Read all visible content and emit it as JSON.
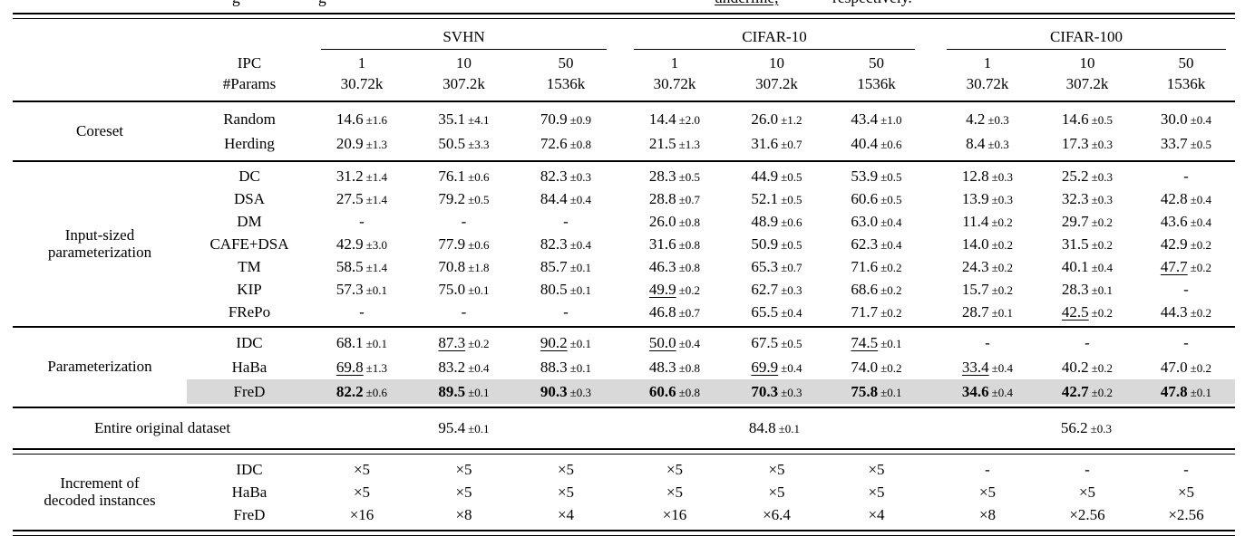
{
  "colors": {
    "row_highlight": "#d9d9d9",
    "text": "#000000",
    "background": "#ffffff"
  },
  "caption_fragments": [
    {
      "text": "g"
    },
    {
      "text": "g"
    },
    {
      "text": "underline,"
    },
    {
      "text": "respectively."
    }
  ],
  "table": {
    "header": {
      "ipc_label": "IPC",
      "params_label": "#Params",
      "groups": [
        {
          "name": "SVHN"
        },
        {
          "name": "CIFAR-10"
        },
        {
          "name": "CIFAR-100"
        }
      ],
      "ipc": [
        "1",
        "10",
        "50",
        "1",
        "10",
        "50",
        "1",
        "10",
        "50"
      ],
      "params": [
        "30.72k",
        "307.2k",
        "1536k",
        "30.72k",
        "307.2k",
        "1536k",
        "30.72k",
        "307.2k",
        "1536k"
      ]
    },
    "sections": [
      {
        "category_lines": [
          "Coreset"
        ],
        "rows": [
          {
            "method": "Random",
            "cells": [
              {
                "v": "14.6",
                "e": "±1.6"
              },
              {
                "v": "35.1",
                "e": "±4.1"
              },
              {
                "v": "70.9",
                "e": "±0.9"
              },
              {
                "v": "14.4",
                "e": "±2.0"
              },
              {
                "v": "26.0",
                "e": "±1.2"
              },
              {
                "v": "43.4",
                "e": "±1.0"
              },
              {
                "v": "4.2",
                "e": "±0.3"
              },
              {
                "v": "14.6",
                "e": "±0.5"
              },
              {
                "v": "30.0",
                "e": "±0.4"
              }
            ]
          },
          {
            "method": "Herding",
            "cells": [
              {
                "v": "20.9",
                "e": "±1.3"
              },
              {
                "v": "50.5",
                "e": "±3.3"
              },
              {
                "v": "72.6",
                "e": "±0.8"
              },
              {
                "v": "21.5",
                "e": "±1.3"
              },
              {
                "v": "31.6",
                "e": "±0.7"
              },
              {
                "v": "40.4",
                "e": "±0.6"
              },
              {
                "v": "8.4",
                "e": "±0.3"
              },
              {
                "v": "17.3",
                "e": "±0.3"
              },
              {
                "v": "33.7",
                "e": "±0.5"
              }
            ]
          }
        ]
      },
      {
        "category_lines": [
          "Input-sized",
          "parameterization"
        ],
        "rows": [
          {
            "method": "DC",
            "cells": [
              {
                "v": "31.2",
                "e": "±1.4"
              },
              {
                "v": "76.1",
                "e": "±0.6"
              },
              {
                "v": "82.3",
                "e": "±0.3"
              },
              {
                "v": "28.3",
                "e": "±0.5"
              },
              {
                "v": "44.9",
                "e": "±0.5"
              },
              {
                "v": "53.9",
                "e": "±0.5"
              },
              {
                "v": "12.8",
                "e": "±0.3"
              },
              {
                "v": "25.2",
                "e": "±0.3"
              },
              {
                "v": "-"
              }
            ]
          },
          {
            "method": "DSA",
            "cells": [
              {
                "v": "27.5",
                "e": "±1.4"
              },
              {
                "v": "79.2",
                "e": "±0.5"
              },
              {
                "v": "84.4",
                "e": "±0.4"
              },
              {
                "v": "28.8",
                "e": "±0.7"
              },
              {
                "v": "52.1",
                "e": "±0.5"
              },
              {
                "v": "60.6",
                "e": "±0.5"
              },
              {
                "v": "13.9",
                "e": "±0.3"
              },
              {
                "v": "32.3",
                "e": "±0.3"
              },
              {
                "v": "42.8",
                "e": "±0.4"
              }
            ]
          },
          {
            "method": "DM",
            "cells": [
              {
                "v": "-"
              },
              {
                "v": "-"
              },
              {
                "v": "-"
              },
              {
                "v": "26.0",
                "e": "±0.8"
              },
              {
                "v": "48.9",
                "e": "±0.6"
              },
              {
                "v": "63.0",
                "e": "±0.4"
              },
              {
                "v": "11.4",
                "e": "±0.2"
              },
              {
                "v": "29.7",
                "e": "±0.2"
              },
              {
                "v": "43.6",
                "e": "±0.4"
              }
            ]
          },
          {
            "method": "CAFE+DSA",
            "cells": [
              {
                "v": "42.9",
                "e": "±3.0"
              },
              {
                "v": "77.9",
                "e": "±0.6"
              },
              {
                "v": "82.3",
                "e": "±0.4"
              },
              {
                "v": "31.6",
                "e": "±0.8"
              },
              {
                "v": "50.9",
                "e": "±0.5"
              },
              {
                "v": "62.3",
                "e": "±0.4"
              },
              {
                "v": "14.0",
                "e": "±0.2"
              },
              {
                "v": "31.5",
                "e": "±0.2"
              },
              {
                "v": "42.9",
                "e": "±0.2"
              }
            ]
          },
          {
            "method": "TM",
            "cells": [
              {
                "v": "58.5",
                "e": "±1.4"
              },
              {
                "v": "70.8",
                "e": "±1.8"
              },
              {
                "v": "85.7",
                "e": "±0.1"
              },
              {
                "v": "46.3",
                "e": "±0.8"
              },
              {
                "v": "65.3",
                "e": "±0.7"
              },
              {
                "v": "71.6",
                "e": "±0.2"
              },
              {
                "v": "24.3",
                "e": "±0.2"
              },
              {
                "v": "40.1",
                "e": "±0.4"
              },
              {
                "v": "47.7",
                "e": "±0.2",
                "u": true
              }
            ]
          },
          {
            "method": "KIP",
            "cells": [
              {
                "v": "57.3",
                "e": "±0.1"
              },
              {
                "v": "75.0",
                "e": "±0.1"
              },
              {
                "v": "80.5",
                "e": "±0.1"
              },
              {
                "v": "49.9",
                "e": "±0.2",
                "u": true
              },
              {
                "v": "62.7",
                "e": "±0.3"
              },
              {
                "v": "68.6",
                "e": "±0.2"
              },
              {
                "v": "15.7",
                "e": "±0.2"
              },
              {
                "v": "28.3",
                "e": "±0.1"
              },
              {
                "v": "-"
              }
            ]
          },
          {
            "method": "FRePo",
            "cells": [
              {
                "v": "-"
              },
              {
                "v": "-"
              },
              {
                "v": "-"
              },
              {
                "v": "46.8",
                "e": "±0.7"
              },
              {
                "v": "65.5",
                "e": "±0.4"
              },
              {
                "v": "71.7",
                "e": "±0.2"
              },
              {
                "v": "28.7",
                "e": "±0.1"
              },
              {
                "v": "42.5",
                "e": "±0.2",
                "u": true
              },
              {
                "v": "44.3",
                "e": "±0.2"
              }
            ]
          }
        ]
      },
      {
        "category_lines": [
          "Parameterization"
        ],
        "rows": [
          {
            "method": "IDC",
            "cells": [
              {
                "v": "68.1",
                "e": "±0.1"
              },
              {
                "v": "87.3",
                "e": "±0.2",
                "u": true
              },
              {
                "v": "90.2",
                "e": "±0.1",
                "u": true
              },
              {
                "v": "50.0",
                "e": "±0.4",
                "u": true
              },
              {
                "v": "67.5",
                "e": "±0.5"
              },
              {
                "v": "74.5",
                "e": "±0.1",
                "u": true
              },
              {
                "v": "-"
              },
              {
                "v": "-"
              },
              {
                "v": "-"
              }
            ]
          },
          {
            "method": "HaBa",
            "cells": [
              {
                "v": "69.8",
                "e": "±1.3",
                "u": true
              },
              {
                "v": "83.2",
                "e": "±0.4"
              },
              {
                "v": "88.3",
                "e": "±0.1"
              },
              {
                "v": "48.3",
                "e": "±0.8"
              },
              {
                "v": "69.9",
                "e": "±0.4",
                "u": true
              },
              {
                "v": "74.0",
                "e": "±0.2"
              },
              {
                "v": "33.4",
                "e": "±0.4",
                "u": true
              },
              {
                "v": "40.2",
                "e": "±0.2"
              },
              {
                "v": "47.0",
                "e": "±0.2"
              }
            ]
          },
          {
            "method": "FreD",
            "highlight": true,
            "cells": [
              {
                "v": "82.2",
                "e": "±0.6",
                "b": true
              },
              {
                "v": "89.5",
                "e": "±0.1",
                "b": true
              },
              {
                "v": "90.3",
                "e": "±0.3",
                "b": true
              },
              {
                "v": "60.6",
                "e": "±0.8",
                "b": true
              },
              {
                "v": "70.3",
                "e": "±0.3",
                "b": true
              },
              {
                "v": "75.8",
                "e": "±0.1",
                "b": true
              },
              {
                "v": "34.6",
                "e": "±0.4",
                "b": true
              },
              {
                "v": "42.7",
                "e": "±0.2",
                "b": true
              },
              {
                "v": "47.8",
                "e": "±0.1",
                "b": true
              }
            ]
          }
        ]
      },
      {
        "category_lines": [
          "Increment of",
          "decoded instances"
        ],
        "rows": [
          {
            "method": "IDC",
            "cells": [
              {
                "v": "×5"
              },
              {
                "v": "×5"
              },
              {
                "v": "×5"
              },
              {
                "v": "×5"
              },
              {
                "v": "×5"
              },
              {
                "v": "×5"
              },
              {
                "v": "-"
              },
              {
                "v": "-"
              },
              {
                "v": "-"
              }
            ]
          },
          {
            "method": "HaBa",
            "cells": [
              {
                "v": "×5"
              },
              {
                "v": "×5"
              },
              {
                "v": "×5"
              },
              {
                "v": "×5"
              },
              {
                "v": "×5"
              },
              {
                "v": "×5"
              },
              {
                "v": "×5"
              },
              {
                "v": "×5"
              },
              {
                "v": "×5"
              }
            ]
          },
          {
            "method": "FreD",
            "cells": [
              {
                "v": "×16"
              },
              {
                "v": "×8"
              },
              {
                "v": "×4"
              },
              {
                "v": "×16"
              },
              {
                "v": "×6.4"
              },
              {
                "v": "×4"
              },
              {
                "v": "×8"
              },
              {
                "v": "×2.56"
              },
              {
                "v": "×2.56"
              }
            ]
          }
        ]
      }
    ],
    "entire": {
      "label": "Entire original dataset",
      "values": [
        {
          "v": "95.4",
          "e": "±0.1"
        },
        {
          "v": "84.8",
          "e": "±0.1"
        },
        {
          "v": "56.2",
          "e": "±0.3"
        }
      ]
    }
  }
}
